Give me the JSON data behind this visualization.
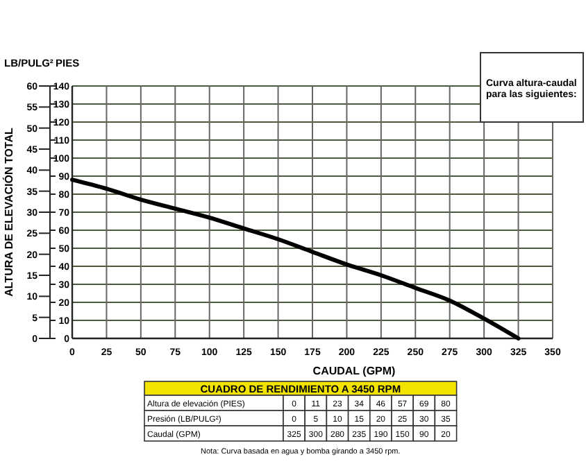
{
  "chart_data": [
    {
      "type": "line",
      "xlabel": "CAUDAL (GPM)",
      "ylabel": "PIES",
      "y2label": "LB/PULG²",
      "annotations": [
        "ALTURA DE ELEVACIÓN TOTAL",
        "Curva altura-caudal para las siguientes:"
      ],
      "x": [
        0,
        25,
        50,
        75,
        100,
        125,
        150,
        175,
        200,
        225,
        250,
        275,
        300,
        325
      ],
      "series": [
        {
          "color": "#000000",
          "values": [
            88,
            83,
            77,
            72,
            67,
            61,
            55,
            48,
            41,
            35,
            28,
            21,
            11,
            0
          ]
        }
      ],
      "xlim": [
        0,
        350
      ],
      "xticks": [
        0,
        25,
        50,
        75,
        100,
        125,
        150,
        175,
        200,
        225,
        250,
        275,
        300,
        325,
        350
      ],
      "ylim": [
        0,
        140
      ],
      "yticks": [
        0,
        10,
        20,
        30,
        40,
        50,
        60,
        70,
        80,
        90,
        100,
        110,
        120,
        130,
        140
      ],
      "y2lim": [
        0,
        60
      ],
      "y2ticks": [
        0,
        5,
        10,
        15,
        20,
        25,
        30,
        35,
        40,
        45,
        50,
        55,
        60
      ],
      "grid": true
    },
    {
      "type": "other",
      "title": "CUADRO DE RENDIMIENTO A 3450 RPM",
      "y_categories": [
        "Altura de elevación (PIES)",
        "Presión (LB/PULG²)",
        "Caudal (GPM)"
      ],
      "cells": [
        [
          "0",
          "11",
          "23",
          "34",
          "46",
          "57",
          "69",
          "80"
        ],
        [
          "0",
          "5",
          "10",
          "15",
          "20",
          "25",
          "30",
          "35"
        ],
        [
          "325",
          "300",
          "280",
          "235",
          "190",
          "150",
          "90",
          "20"
        ]
      ],
      "annotations": [
        "Nota: Curva basada en agua y bomba girando a 3450 rpm."
      ]
    }
  ]
}
